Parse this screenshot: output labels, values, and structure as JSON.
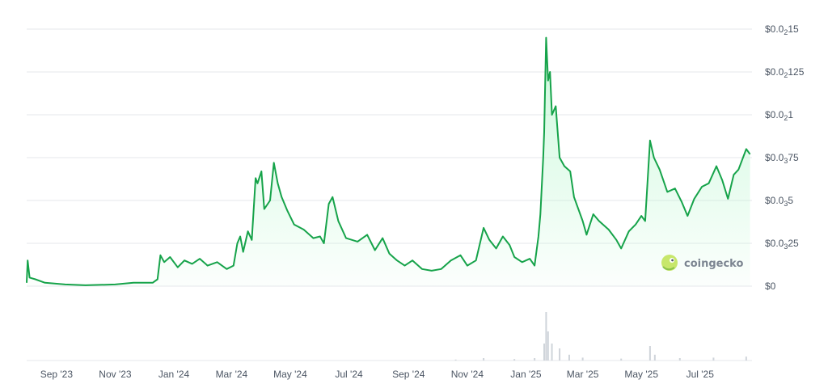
{
  "chart_data": {
    "type": "area",
    "ylim": [
      0,
      0.0015
    ],
    "xlim": [
      "2023-08-01",
      "2025-08-24"
    ],
    "grid": true,
    "colors": {
      "line": "#16a34a",
      "fill_top": "#bbf7d0",
      "volume": "#cfd4da",
      "grid": "#e5e7eb"
    },
    "y_ticks": [
      {
        "value": 0.0015,
        "prefix": "$0.0",
        "sub": "2",
        "suffix": "15"
      },
      {
        "value": 0.00125,
        "prefix": "$0.0",
        "sub": "2",
        "suffix": "125"
      },
      {
        "value": 0.001,
        "prefix": "$0.0",
        "sub": "2",
        "suffix": "1"
      },
      {
        "value": 0.00075,
        "prefix": "$0.0",
        "sub": "3",
        "suffix": "75"
      },
      {
        "value": 0.0005,
        "prefix": "$0.0",
        "sub": "3",
        "suffix": "5"
      },
      {
        "value": 0.00025,
        "prefix": "$0.0",
        "sub": "3",
        "suffix": "25"
      },
      {
        "value": 0,
        "prefix": "$0",
        "sub": "",
        "suffix": ""
      }
    ],
    "x_ticks": [
      {
        "date": "2023-09-01",
        "label": "Sep '23"
      },
      {
        "date": "2023-11-01",
        "label": "Nov '23"
      },
      {
        "date": "2024-01-01",
        "label": "Jan '24"
      },
      {
        "date": "2024-03-01",
        "label": "Mar '24"
      },
      {
        "date": "2024-05-01",
        "label": "May '24"
      },
      {
        "date": "2024-07-01",
        "label": "Jul '24"
      },
      {
        "date": "2024-09-01",
        "label": "Sep '24"
      },
      {
        "date": "2024-11-01",
        "label": "Nov '24"
      },
      {
        "date": "2025-01-01",
        "label": "Jan '25"
      },
      {
        "date": "2025-03-01",
        "label": "Mar '25"
      },
      {
        "date": "2025-05-01",
        "label": "May '25"
      },
      {
        "date": "2025-07-01",
        "label": "Jul '25"
      }
    ],
    "series": [
      {
        "points": [
          [
            "2023-08-01",
            2e-05
          ],
          [
            "2023-08-02",
            0.00015
          ],
          [
            "2023-08-04",
            5e-05
          ],
          [
            "2023-08-10",
            4e-05
          ],
          [
            "2023-08-20",
            2e-05
          ],
          [
            "2023-09-10",
            1e-05
          ],
          [
            "2023-10-01",
            5e-06
          ],
          [
            "2023-11-01",
            1e-05
          ],
          [
            "2023-11-20",
            2e-05
          ],
          [
            "2023-12-10",
            2e-05
          ],
          [
            "2023-12-15",
            4e-05
          ],
          [
            "2023-12-18",
            0.00018
          ],
          [
            "2023-12-22",
            0.00014
          ],
          [
            "2023-12-28",
            0.00017
          ],
          [
            "2024-01-05",
            0.00011
          ],
          [
            "2024-01-12",
            0.00015
          ],
          [
            "2024-01-20",
            0.00013
          ],
          [
            "2024-01-28",
            0.00016
          ],
          [
            "2024-02-05",
            0.00012
          ],
          [
            "2024-02-15",
            0.00014
          ],
          [
            "2024-02-25",
            0.0001
          ],
          [
            "2024-03-03",
            0.00012
          ],
          [
            "2024-03-07",
            0.00025
          ],
          [
            "2024-03-10",
            0.00029
          ],
          [
            "2024-03-13",
            0.0002
          ],
          [
            "2024-03-18",
            0.00032
          ],
          [
            "2024-03-22",
            0.00027
          ],
          [
            "2024-03-26",
            0.00063
          ],
          [
            "2024-03-28",
            0.0006
          ],
          [
            "2024-04-01",
            0.00067
          ],
          [
            "2024-04-04",
            0.00045
          ],
          [
            "2024-04-10",
            0.0005
          ],
          [
            "2024-04-14",
            0.00072
          ],
          [
            "2024-04-18",
            0.0006
          ],
          [
            "2024-04-22",
            0.00052
          ],
          [
            "2024-04-28",
            0.00044
          ],
          [
            "2024-05-05",
            0.00036
          ],
          [
            "2024-05-15",
            0.00033
          ],
          [
            "2024-05-25",
            0.00028
          ],
          [
            "2024-06-01",
            0.00029
          ],
          [
            "2024-06-05",
            0.00025
          ],
          [
            "2024-06-10",
            0.00048
          ],
          [
            "2024-06-14",
            0.00052
          ],
          [
            "2024-06-20",
            0.00038
          ],
          [
            "2024-06-28",
            0.00028
          ],
          [
            "2024-07-10",
            0.00026
          ],
          [
            "2024-07-20",
            0.0003
          ],
          [
            "2024-07-28",
            0.00021
          ],
          [
            "2024-08-05",
            0.00028
          ],
          [
            "2024-08-12",
            0.00019
          ],
          [
            "2024-08-20",
            0.00015
          ],
          [
            "2024-08-28",
            0.00012
          ],
          [
            "2024-09-05",
            0.00015
          ],
          [
            "2024-09-15",
            0.0001
          ],
          [
            "2024-09-25",
            9e-05
          ],
          [
            "2024-10-05",
            0.0001
          ],
          [
            "2024-10-15",
            0.00015
          ],
          [
            "2024-10-25",
            0.00018
          ],
          [
            "2024-11-01",
            0.00012
          ],
          [
            "2024-11-10",
            0.00015
          ],
          [
            "2024-11-18",
            0.00034
          ],
          [
            "2024-11-24",
            0.00027
          ],
          [
            "2024-12-01",
            0.00022
          ],
          [
            "2024-12-08",
            0.00029
          ],
          [
            "2024-12-15",
            0.00024
          ],
          [
            "2024-12-20",
            0.00017
          ],
          [
            "2024-12-28",
            0.00014
          ],
          [
            "2025-01-05",
            0.00016
          ],
          [
            "2025-01-10",
            0.00012
          ],
          [
            "2025-01-14",
            0.00029
          ],
          [
            "2025-01-16",
            0.00042
          ],
          [
            "2025-01-19",
            0.00075
          ],
          [
            "2025-01-20",
            0.0009
          ],
          [
            "2025-01-22",
            0.00145
          ],
          [
            "2025-01-24",
            0.0012
          ],
          [
            "2025-01-26",
            0.00125
          ],
          [
            "2025-01-28",
            0.001
          ],
          [
            "2025-02-01",
            0.00105
          ],
          [
            "2025-02-05",
            0.00075
          ],
          [
            "2025-02-10",
            0.0007
          ],
          [
            "2025-02-16",
            0.00067
          ],
          [
            "2025-02-20",
            0.00052
          ],
          [
            "2025-03-01",
            0.00038
          ],
          [
            "2025-03-05",
            0.0003
          ],
          [
            "2025-03-12",
            0.00042
          ],
          [
            "2025-03-18",
            0.00038
          ],
          [
            "2025-03-28",
            0.00033
          ],
          [
            "2025-04-05",
            0.00027
          ],
          [
            "2025-04-10",
            0.00022
          ],
          [
            "2025-04-18",
            0.00032
          ],
          [
            "2025-04-25",
            0.00036
          ],
          [
            "2025-05-01",
            0.00041
          ],
          [
            "2025-05-05",
            0.00038
          ],
          [
            "2025-05-10",
            0.00085
          ],
          [
            "2025-05-14",
            0.00075
          ],
          [
            "2025-05-20",
            0.00068
          ],
          [
            "2025-05-28",
            0.00055
          ],
          [
            "2025-06-05",
            0.00057
          ],
          [
            "2025-06-12",
            0.00049
          ],
          [
            "2025-06-18",
            0.00041
          ],
          [
            "2025-06-25",
            0.00051
          ],
          [
            "2025-07-03",
            0.00058
          ],
          [
            "2025-07-10",
            0.0006
          ],
          [
            "2025-07-18",
            0.0007
          ],
          [
            "2025-07-24",
            0.00062
          ],
          [
            "2025-07-30",
            0.00051
          ],
          [
            "2025-08-05",
            0.00065
          ],
          [
            "2025-08-10",
            0.00068
          ],
          [
            "2025-08-18",
            0.0008
          ],
          [
            "2025-08-22",
            0.00077
          ]
        ]
      }
    ],
    "volume": [
      [
        "2024-10-20",
        0.02
      ],
      [
        "2024-11-18",
        0.05
      ],
      [
        "2024-12-20",
        0.03
      ],
      [
        "2025-01-10",
        0.05
      ],
      [
        "2025-01-20",
        0.35
      ],
      [
        "2025-01-22",
        1.0
      ],
      [
        "2025-01-24",
        0.6
      ],
      [
        "2025-01-28",
        0.35
      ],
      [
        "2025-02-05",
        0.25
      ],
      [
        "2025-02-15",
        0.12
      ],
      [
        "2025-03-01",
        0.06
      ],
      [
        "2025-04-10",
        0.04
      ],
      [
        "2025-05-10",
        0.3
      ],
      [
        "2025-05-15",
        0.12
      ],
      [
        "2025-06-10",
        0.05
      ],
      [
        "2025-07-15",
        0.06
      ],
      [
        "2025-08-18",
        0.08
      ]
    ]
  },
  "watermark": {
    "text": "coingecko",
    "icon": "gecko-logo-icon"
  }
}
